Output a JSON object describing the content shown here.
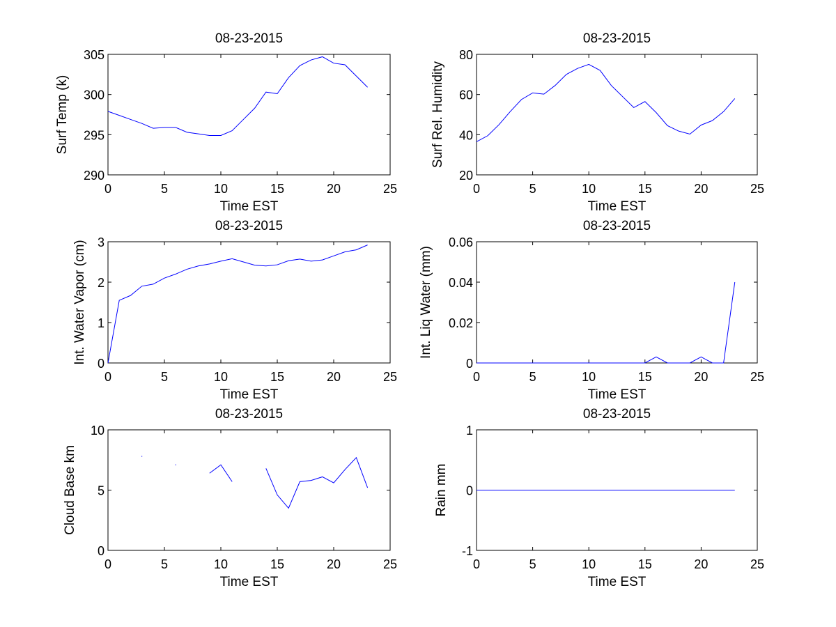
{
  "chart_data": [
    {
      "type": "line",
      "title": "08-23-2015",
      "xlabel": "Time EST",
      "ylabel": "Surf Temp (k)",
      "xlim": [
        0,
        25
      ],
      "ylim": [
        290,
        305
      ],
      "xticks": [
        0,
        5,
        10,
        15,
        20,
        25
      ],
      "xtick_labels": [
        "0",
        "5",
        "10",
        "15",
        "20",
        "25"
      ],
      "yticks": [
        290,
        295,
        300,
        305
      ],
      "ytick_labels": [
        "290",
        "295",
        "300",
        "305"
      ],
      "grid": false,
      "line_color": "#0000ff",
      "series": [
        {
          "x": [
            0,
            1,
            2,
            3,
            4,
            5,
            6,
            7,
            8,
            9,
            10,
            11,
            12,
            13,
            14,
            15,
            16,
            17,
            18,
            19,
            20,
            21,
            22,
            23
          ],
          "y": [
            297.9,
            297.4,
            296.9,
            296.4,
            295.8,
            295.9,
            295.9,
            295.3,
            295.1,
            294.9,
            294.9,
            295.5,
            296.9,
            298.3,
            300.3,
            300.1,
            302.1,
            303.6,
            304.3,
            304.7,
            303.9,
            303.7,
            302.3,
            300.9
          ]
        }
      ]
    },
    {
      "type": "line",
      "title": "08-23-2015",
      "xlabel": "Time EST",
      "ylabel": "Surf Rel. Humidity",
      "xlim": [
        0,
        25
      ],
      "ylim": [
        20,
        80
      ],
      "xticks": [
        0,
        5,
        10,
        15,
        20,
        25
      ],
      "xtick_labels": [
        "0",
        "5",
        "10",
        "15",
        "20",
        "25"
      ],
      "yticks": [
        20,
        40,
        60,
        80
      ],
      "ytick_labels": [
        "20",
        "40",
        "60",
        "80"
      ],
      "grid": false,
      "line_color": "#0000ff",
      "series": [
        {
          "x": [
            0,
            1,
            2,
            3,
            4,
            5,
            6,
            7,
            8,
            9,
            10,
            11,
            12,
            13,
            14,
            15,
            16,
            17,
            18,
            19,
            20,
            21,
            22,
            23
          ],
          "y": [
            36.5,
            39.5,
            45,
            51.5,
            57.5,
            60.8,
            60.2,
            64.5,
            70,
            73,
            75,
            72,
            64.5,
            59,
            53.5,
            56.5,
            51,
            44.5,
            41.8,
            40.3,
            44.8,
            47,
            51.5,
            58
          ]
        }
      ]
    },
    {
      "type": "line",
      "title": "08-23-2015",
      "xlabel": "Time EST",
      "ylabel": "Int. Water Vapor (cm)",
      "xlim": [
        0,
        25
      ],
      "ylim": [
        0,
        3
      ],
      "xticks": [
        0,
        5,
        10,
        15,
        20,
        25
      ],
      "xtick_labels": [
        "0",
        "5",
        "10",
        "15",
        "20",
        "25"
      ],
      "yticks": [
        0,
        1,
        2,
        3
      ],
      "ytick_labels": [
        "0",
        "1",
        "2",
        "3"
      ],
      "grid": false,
      "line_color": "#0000ff",
      "series": [
        {
          "x": [
            0,
            1,
            2,
            3,
            4,
            5,
            6,
            7,
            8,
            9,
            10,
            11,
            12,
            13,
            14,
            15,
            16,
            17,
            18,
            19,
            20,
            21,
            22,
            23
          ],
          "y": [
            0,
            1.55,
            1.67,
            1.9,
            1.95,
            2.1,
            2.2,
            2.32,
            2.4,
            2.45,
            2.52,
            2.58,
            2.5,
            2.42,
            2.4,
            2.43,
            2.53,
            2.57,
            2.52,
            2.55,
            2.65,
            2.75,
            2.8,
            2.92
          ]
        }
      ]
    },
    {
      "type": "line",
      "title": "08-23-2015",
      "xlabel": "Time EST",
      "ylabel": "Int. Liq Water (mm)",
      "xlim": [
        0,
        25
      ],
      "ylim": [
        0,
        0.06
      ],
      "xticks": [
        0,
        5,
        10,
        15,
        20,
        25
      ],
      "xtick_labels": [
        "0",
        "5",
        "10",
        "15",
        "20",
        "25"
      ],
      "yticks": [
        0,
        0.02,
        0.04,
        0.06
      ],
      "ytick_labels": [
        "0",
        "0.02",
        "0.04",
        "0.06"
      ],
      "grid": false,
      "line_color": "#0000ff",
      "series": [
        {
          "x": [
            0,
            1,
            2,
            3,
            4,
            5,
            6,
            7,
            8,
            9,
            10,
            11,
            12,
            13,
            14,
            15,
            16,
            17,
            18,
            19,
            20,
            21,
            22,
            23
          ],
          "y": [
            0,
            0,
            0,
            0,
            0,
            0,
            0,
            0,
            0,
            0,
            0,
            0,
            0,
            0,
            0,
            0,
            0.003,
            0,
            0,
            0,
            0.003,
            0,
            0,
            0.04
          ]
        }
      ]
    },
    {
      "type": "line",
      "title": "08-23-2015",
      "xlabel": "Time EST",
      "ylabel": "Cloud Base km",
      "xlim": [
        0,
        25
      ],
      "ylim": [
        0,
        10
      ],
      "xticks": [
        0,
        5,
        10,
        15,
        20,
        25
      ],
      "xtick_labels": [
        "0",
        "5",
        "10",
        "15",
        "20",
        "25"
      ],
      "yticks": [
        0,
        5,
        10
      ],
      "ytick_labels": [
        "0",
        "5",
        "10"
      ],
      "grid": false,
      "line_color": "#0000ff",
      "series": [
        {
          "x": [
            0,
            1,
            2,
            3,
            4,
            5,
            6,
            7,
            8,
            9,
            10,
            11,
            12,
            13,
            14,
            15,
            16,
            17,
            18,
            19,
            20,
            21,
            22,
            23
          ],
          "y": [
            null,
            null,
            null,
            7.8,
            null,
            null,
            7.1,
            null,
            null,
            6.4,
            7.1,
            5.7,
            null,
            null,
            6.8,
            4.6,
            3.5,
            5.7,
            5.8,
            6.1,
            5.6,
            6.7,
            7.7,
            5.2
          ]
        }
      ]
    },
    {
      "type": "line",
      "title": "08-23-2015",
      "xlabel": "Time EST",
      "ylabel": "Rain mm",
      "xlim": [
        0,
        25
      ],
      "ylim": [
        -1,
        1
      ],
      "xticks": [
        0,
        5,
        10,
        15,
        20,
        25
      ],
      "xtick_labels": [
        "0",
        "5",
        "10",
        "15",
        "20",
        "25"
      ],
      "yticks": [
        -1,
        0,
        1
      ],
      "ytick_labels": [
        "-1",
        "0",
        "1"
      ],
      "grid": false,
      "line_color": "#0000ff",
      "series": [
        {
          "x": [
            0,
            1,
            2,
            3,
            4,
            5,
            6,
            7,
            8,
            9,
            10,
            11,
            12,
            13,
            14,
            15,
            16,
            17,
            18,
            19,
            20,
            21,
            22,
            23
          ],
          "y": [
            0,
            0,
            0,
            0,
            0,
            0,
            0,
            0,
            0,
            0,
            0,
            0,
            0,
            0,
            0,
            0,
            0,
            0,
            0,
            0,
            0,
            0,
            0,
            0
          ]
        }
      ]
    }
  ]
}
